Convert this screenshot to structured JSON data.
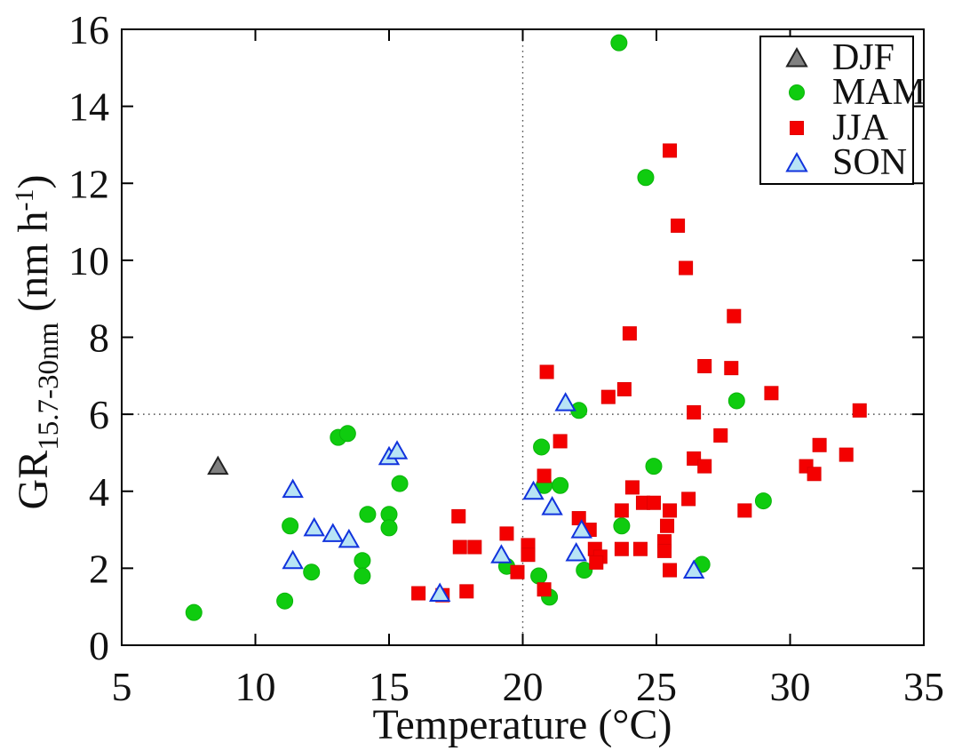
{
  "figure": {
    "background": "#ffffff",
    "frame_color": "#000000",
    "tick_label_color": "#111111",
    "reference_line_color": "#555555",
    "ylabel_parts": {
      "main": "GR",
      "sub": "15.7-30nm",
      "mid": " (nm h",
      "sup": "-1",
      "end": ")"
    }
  },
  "chart_data": {
    "type": "scatter",
    "title": "",
    "xlabel": "Temperature (°C)",
    "ylabel": "GR 15.7-30nm (nm h^-1)",
    "xlim": [
      5,
      35
    ],
    "ylim": [
      0,
      16
    ],
    "x_ticks": [
      5,
      10,
      15,
      20,
      25,
      30,
      35
    ],
    "y_ticks": [
      0,
      2,
      4,
      6,
      8,
      10,
      12,
      14,
      16
    ],
    "grid": "off",
    "reference_lines": {
      "x": 20,
      "y": 6,
      "style": "dotted"
    },
    "legend_position": "top-right",
    "series": [
      {
        "name": "DJF",
        "marker": "triangle",
        "fill": "#808080",
        "edge": "#222222",
        "points": [
          [
            8.6,
            4.65
          ]
        ]
      },
      {
        "name": "MAM",
        "marker": "circle",
        "fill": "#0fcc0f",
        "edge": "#0bb40b",
        "points": [
          [
            7.7,
            0.85
          ],
          [
            11.1,
            1.15
          ],
          [
            11.3,
            3.1
          ],
          [
            12.1,
            1.9
          ],
          [
            13.1,
            5.4
          ],
          [
            13.45,
            5.5
          ],
          [
            14.0,
            2.2
          ],
          [
            14.0,
            1.8
          ],
          [
            14.2,
            3.4
          ],
          [
            15.0,
            3.4
          ],
          [
            15.0,
            3.05
          ],
          [
            15.4,
            4.2
          ],
          [
            19.4,
            2.05
          ],
          [
            20.6,
            1.8
          ],
          [
            21.0,
            1.25
          ],
          [
            20.7,
            5.15
          ],
          [
            20.8,
            4.15
          ],
          [
            21.4,
            4.15
          ],
          [
            22.1,
            6.1
          ],
          [
            22.3,
            1.95
          ],
          [
            23.6,
            15.65
          ],
          [
            23.7,
            3.1
          ],
          [
            24.6,
            12.15
          ],
          [
            24.9,
            4.65
          ],
          [
            26.7,
            2.1
          ],
          [
            28.0,
            6.35
          ],
          [
            29.0,
            3.75
          ]
        ]
      },
      {
        "name": "JJA",
        "marker": "square",
        "fill": "#f40000",
        "edge": "#e00000",
        "points": [
          [
            16.1,
            1.35
          ],
          [
            17.0,
            1.3
          ],
          [
            17.9,
            1.4
          ],
          [
            17.6,
            3.35
          ],
          [
            17.65,
            2.55
          ],
          [
            18.2,
            2.55
          ],
          [
            19.4,
            2.9
          ],
          [
            19.8,
            1.9
          ],
          [
            20.2,
            2.6
          ],
          [
            20.2,
            2.35
          ],
          [
            20.8,
            1.45
          ],
          [
            20.9,
            7.1
          ],
          [
            21.4,
            5.3
          ],
          [
            20.8,
            4.4
          ],
          [
            22.1,
            3.3
          ],
          [
            22.5,
            3.0
          ],
          [
            22.7,
            2.5
          ],
          [
            22.9,
            2.3
          ],
          [
            22.75,
            2.15
          ],
          [
            23.2,
            6.45
          ],
          [
            23.8,
            6.65
          ],
          [
            23.7,
            3.5
          ],
          [
            23.7,
            2.5
          ],
          [
            24.4,
            2.5
          ],
          [
            24.1,
            4.1
          ],
          [
            24.0,
            8.1
          ],
          [
            24.5,
            3.7
          ],
          [
            24.9,
            3.7
          ],
          [
            25.5,
            3.5
          ],
          [
            25.4,
            3.1
          ],
          [
            25.3,
            2.7
          ],
          [
            25.3,
            2.45
          ],
          [
            25.5,
            12.85
          ],
          [
            25.5,
            1.95
          ],
          [
            25.8,
            10.9
          ],
          [
            26.1,
            9.8
          ],
          [
            26.2,
            3.8
          ],
          [
            26.4,
            6.05
          ],
          [
            26.4,
            4.85
          ],
          [
            26.8,
            4.65
          ],
          [
            26.8,
            7.25
          ],
          [
            27.4,
            5.45
          ],
          [
            27.8,
            7.2
          ],
          [
            27.9,
            8.55
          ],
          [
            28.3,
            3.5
          ],
          [
            29.3,
            6.55
          ],
          [
            30.6,
            4.65
          ],
          [
            30.9,
            4.45
          ],
          [
            31.1,
            5.2
          ],
          [
            32.1,
            4.95
          ],
          [
            32.6,
            6.1
          ]
        ]
      },
      {
        "name": "SON",
        "marker": "triangle",
        "fill": "#b8e4f5",
        "edge": "#1133dd",
        "points": [
          [
            11.4,
            4.05
          ],
          [
            11.4,
            2.2
          ],
          [
            12.2,
            3.05
          ],
          [
            12.9,
            2.9
          ],
          [
            13.5,
            2.75
          ],
          [
            15.0,
            4.9
          ],
          [
            15.3,
            5.05
          ],
          [
            16.9,
            1.35
          ],
          [
            19.2,
            2.35
          ],
          [
            20.4,
            4.0
          ],
          [
            21.1,
            3.6
          ],
          [
            21.6,
            6.3
          ],
          [
            22.0,
            2.4
          ],
          [
            22.2,
            3.0
          ],
          [
            26.4,
            1.95
          ]
        ]
      }
    ]
  }
}
